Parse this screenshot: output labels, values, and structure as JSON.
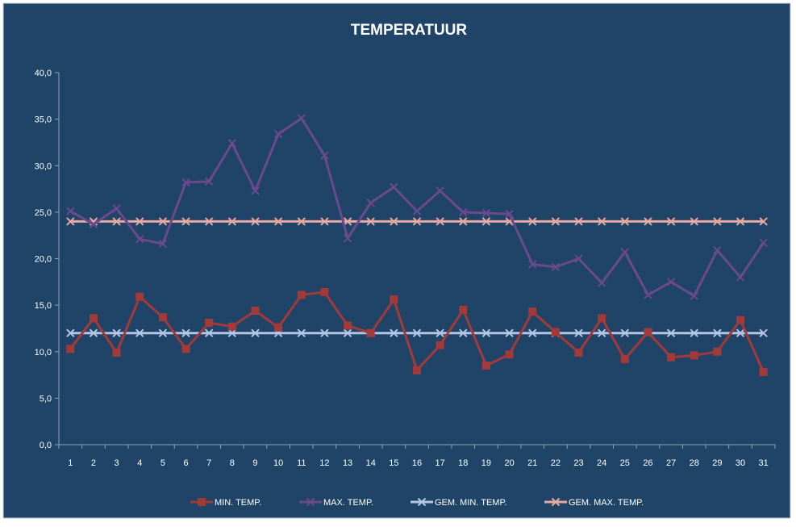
{
  "chart_data": {
    "type": "line",
    "title": "TEMPERATUUR",
    "xlabel": "",
    "ylabel": "",
    "x": [
      1,
      2,
      3,
      4,
      5,
      6,
      7,
      8,
      9,
      10,
      11,
      12,
      13,
      14,
      15,
      16,
      17,
      18,
      19,
      20,
      21,
      22,
      23,
      24,
      25,
      26,
      27,
      28,
      29,
      30,
      31
    ],
    "y_ticks": [
      "0,0",
      "5,0",
      "10,0",
      "15,0",
      "20,0",
      "25,0",
      "30,0",
      "35,0",
      "40,0"
    ],
    "ylim": [
      0,
      40
    ],
    "grid": false,
    "legend_position": "bottom",
    "series": [
      {
        "name": "MIN. TEMP.",
        "marker": "square",
        "color": "#a33a3a",
        "values": [
          10.3,
          13.6,
          9.9,
          15.9,
          13.7,
          10.3,
          13.1,
          12.7,
          14.4,
          12.6,
          16.1,
          16.4,
          12.8,
          12.0,
          15.6,
          8.0,
          10.7,
          14.5,
          8.5,
          9.7,
          14.3,
          12.1,
          9.9,
          13.6,
          9.2,
          12.1,
          9.4,
          9.6,
          10.0,
          13.4,
          7.8
        ]
      },
      {
        "name": "MAX. TEMP.",
        "marker": "x",
        "color": "#6a4a8c",
        "values": [
          25.1,
          23.7,
          25.4,
          22.1,
          21.6,
          28.2,
          28.3,
          32.4,
          27.3,
          33.4,
          35.1,
          31.1,
          22.2,
          26.0,
          27.7,
          25.1,
          27.3,
          25.0,
          24.9,
          24.8,
          19.4,
          19.1,
          20.0,
          17.4,
          20.7,
          16.1,
          17.5,
          16.0,
          20.9,
          18.0,
          21.7
        ]
      },
      {
        "name": "GEM. MIN. TEMP.",
        "marker": "x",
        "color": "#b4c6e7",
        "values": [
          12.0,
          12.0,
          12.0,
          12.0,
          12.0,
          12.0,
          12.0,
          12.0,
          12.0,
          12.0,
          12.0,
          12.0,
          12.0,
          12.0,
          12.0,
          12.0,
          12.0,
          12.0,
          12.0,
          12.0,
          12.0,
          12.0,
          12.0,
          12.0,
          12.0,
          12.0,
          12.0,
          12.0,
          12.0,
          12.0,
          12.0
        ]
      },
      {
        "name": "GEM. MAX. TEMP.",
        "marker": "x",
        "color": "#e6a9a3",
        "values": [
          24.0,
          24.0,
          24.0,
          24.0,
          24.0,
          24.0,
          24.0,
          24.0,
          24.0,
          24.0,
          24.0,
          24.0,
          24.0,
          24.0,
          24.0,
          24.0,
          24.0,
          24.0,
          24.0,
          24.0,
          24.0,
          24.0,
          24.0,
          24.0,
          24.0,
          24.0,
          24.0,
          24.0,
          24.0,
          24.0,
          24.0
        ]
      }
    ],
    "colors": {
      "background": "#1f4467",
      "axis": "#8ea3b8",
      "text": "#ffffff"
    }
  }
}
